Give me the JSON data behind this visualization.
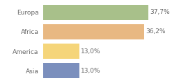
{
  "categories": [
    "Europa",
    "Africa",
    "America",
    "Asia"
  ],
  "values": [
    37.7,
    36.2,
    13.0,
    13.0
  ],
  "labels": [
    "37,7%",
    "36,2%",
    "13,0%",
    "13,0%"
  ],
  "bar_colors": [
    "#a8c08a",
    "#e8b882",
    "#f5d57a",
    "#7b8fbd"
  ],
  "background_color": "#ffffff",
  "xlim": [
    0,
    46
  ],
  "bar_height": 0.78,
  "label_fontsize": 6.5,
  "category_fontsize": 6.5,
  "label_color": "#666666",
  "tick_color": "#666666"
}
